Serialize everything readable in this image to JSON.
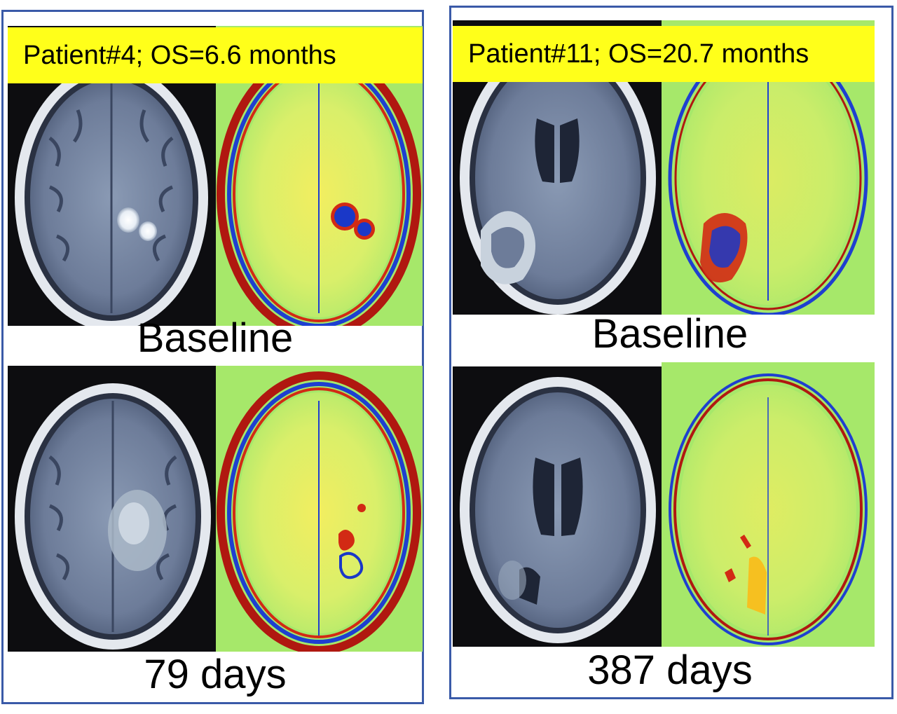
{
  "panels": [
    {
      "title": "Patient#4; OS=6.6 months",
      "captions": [
        "Baseline",
        "79 days"
      ]
    },
    {
      "title": "Patient#11; OS=20.7 months",
      "captions": [
        "Baseline",
        "387 days"
      ]
    }
  ],
  "colors": {
    "frame": "#3a5aa8",
    "label_background": "#ffff1a",
    "mri_background": "#0d0d10",
    "map_background": "#a6e86a"
  },
  "image_content": {
    "mri_scan": "axial contrast-enhanced brain MRI slice",
    "parametric_map": "color-coded parametric map of the same slice"
  }
}
